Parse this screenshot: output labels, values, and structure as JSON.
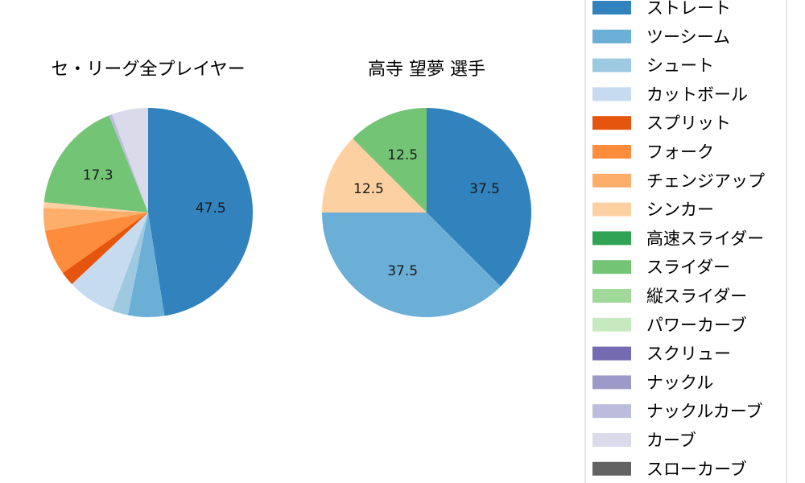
{
  "chart_data": [
    {
      "type": "pie",
      "title": "セ・リーグ全プレイヤー",
      "slices": [
        {
          "label": "ストレート",
          "value": 47.5,
          "color": "#3182bd",
          "show_label": true
        },
        {
          "label": "ツーシーム",
          "value": 5.6,
          "color": "#6baed6",
          "show_label": false
        },
        {
          "label": "シュート",
          "value": 2.5,
          "color": "#9ecae1",
          "show_label": false
        },
        {
          "label": "カットボール",
          "value": 7.4,
          "color": "#c6dbef",
          "show_label": false
        },
        {
          "label": "スプリット",
          "value": 2.2,
          "color": "#e6550d",
          "show_label": false
        },
        {
          "label": "フォーク",
          "value": 7.0,
          "color": "#fd8d3c",
          "show_label": false
        },
        {
          "label": "チェンジアップ",
          "value": 3.5,
          "color": "#fdae6b",
          "show_label": false
        },
        {
          "label": "シンカー",
          "value": 0.9,
          "color": "#fdd0a2",
          "show_label": false
        },
        {
          "label": "スライダー",
          "value": 17.3,
          "color": "#74c476",
          "show_label": true
        },
        {
          "label": "ナックルカーブ",
          "value": 0.5,
          "color": "#bcbddc",
          "show_label": false
        },
        {
          "label": "カーブ",
          "value": 5.6,
          "color": "#dadaeb",
          "show_label": false
        }
      ]
    },
    {
      "type": "pie",
      "title": "高寺 望夢  選手",
      "slices": [
        {
          "label": "ストレート",
          "value": 37.5,
          "color": "#3182bd",
          "show_label": true
        },
        {
          "label": "ツーシーム",
          "value": 37.5,
          "color": "#6baed6",
          "show_label": true
        },
        {
          "label": "シンカー",
          "value": 12.5,
          "color": "#fdd0a2",
          "show_label": true
        },
        {
          "label": "スライダー",
          "value": 12.5,
          "color": "#74c476",
          "show_label": true
        }
      ]
    }
  ],
  "legend": {
    "items": [
      {
        "label": "ストレート",
        "color": "#3182bd"
      },
      {
        "label": "ツーシーム",
        "color": "#6baed6"
      },
      {
        "label": "シュート",
        "color": "#9ecae1"
      },
      {
        "label": "カットボール",
        "color": "#c6dbef"
      },
      {
        "label": "スプリット",
        "color": "#e6550d"
      },
      {
        "label": "フォーク",
        "color": "#fd8d3c"
      },
      {
        "label": "チェンジアップ",
        "color": "#fdae6b"
      },
      {
        "label": "シンカー",
        "color": "#fdd0a2"
      },
      {
        "label": "高速スライダー",
        "color": "#31a354"
      },
      {
        "label": "スライダー",
        "color": "#74c476"
      },
      {
        "label": "縦スライダー",
        "color": "#a1d99b"
      },
      {
        "label": "パワーカーブ",
        "color": "#c7e9c0"
      },
      {
        "label": "スクリュー",
        "color": "#756bb1"
      },
      {
        "label": "ナックル",
        "color": "#9e9ac8"
      },
      {
        "label": "ナックルカーブ",
        "color": "#bcbddc"
      },
      {
        "label": "カーブ",
        "color": "#dadaeb"
      },
      {
        "label": "スローカーブ",
        "color": "#636363"
      }
    ]
  }
}
